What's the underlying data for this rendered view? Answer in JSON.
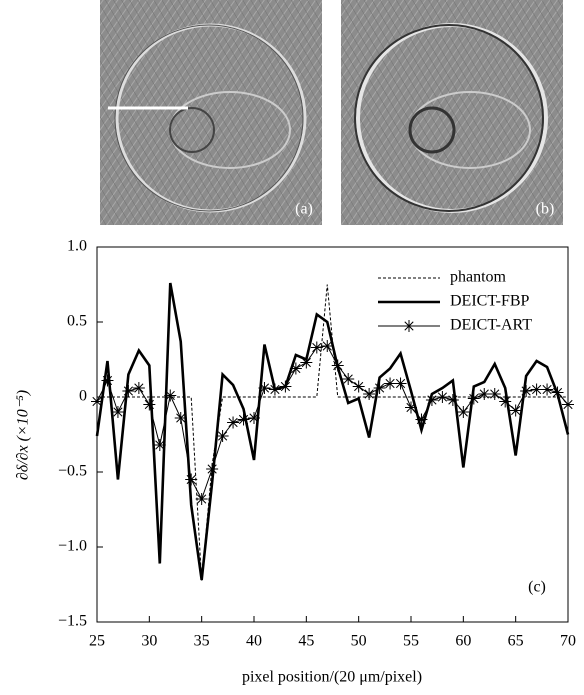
{
  "panels": {
    "a": "(a)",
    "b": "(b)"
  },
  "chart_data": {
    "type": "line",
    "panel_label": "(c)",
    "x_label": "pixel position/(20 μm/pixel)",
    "y_label": "∂δ/∂x (×10⁻⁵)",
    "xlim": [
      25,
      70
    ],
    "xticks": [
      25,
      30,
      35,
      40,
      45,
      50,
      55,
      60,
      65,
      70
    ],
    "ylim": [
      -1.5,
      1.0
    ],
    "yticks": [
      {
        "value": -1.5,
        "label": "−1.5"
      },
      {
        "value": -1.0,
        "label": "−1.0"
      },
      {
        "value": -0.5,
        "label": "−0.5"
      },
      0,
      0.5,
      {
        "value": 1.0,
        "label": "1.0"
      }
    ],
    "legend": "upper right",
    "series": [
      {
        "name": "phantom",
        "color": "#000000",
        "style": "dashed",
        "x": [
          25,
          34,
          35,
          36,
          37,
          46,
          47,
          48,
          70
        ],
        "values": [
          0,
          0,
          -1.23,
          -0.45,
          0,
          0,
          0.75,
          0,
          0
        ]
      },
      {
        "name": "DEICT-FBP",
        "color": "#000000",
        "style": "thick",
        "x": [
          25,
          26,
          27,
          28,
          29,
          30,
          31,
          32,
          33,
          34,
          35,
          36,
          37,
          38,
          39,
          40,
          41,
          42,
          43,
          44,
          45,
          46,
          47,
          48,
          49,
          50,
          51,
          52,
          53,
          54,
          55,
          56,
          57,
          58,
          59,
          60,
          61,
          62,
          63,
          64,
          65,
          66,
          67,
          68,
          69,
          70
        ],
        "values": [
          -0.26,
          0.24,
          -0.55,
          0.15,
          0.31,
          0.21,
          -1.11,
          0.76,
          0.37,
          -0.72,
          -1.22,
          -0.57,
          0.15,
          0.08,
          -0.08,
          -0.42,
          0.35,
          0.05,
          0.07,
          0.28,
          0.25,
          0.55,
          0.5,
          0.2,
          -0.04,
          -0.01,
          -0.27,
          0.13,
          0.19,
          0.29,
          0.04,
          -0.22,
          0.02,
          0.06,
          0.11,
          -0.47,
          0.07,
          0.1,
          0.22,
          0.06,
          -0.39,
          0.14,
          0.24,
          0.2,
          0.02,
          -0.25
        ]
      },
      {
        "name": "DEICT-ART",
        "color": "#000000",
        "style": "star",
        "x": [
          25,
          26,
          27,
          28,
          29,
          30,
          31,
          32,
          33,
          34,
          35,
          36,
          37,
          38,
          39,
          40,
          41,
          42,
          43,
          44,
          45,
          46,
          47,
          48,
          49,
          50,
          51,
          52,
          53,
          54,
          55,
          56,
          57,
          58,
          59,
          60,
          61,
          62,
          63,
          64,
          65,
          66,
          67,
          68,
          69,
          70
        ],
        "values": [
          -0.03,
          0.11,
          -0.1,
          0.04,
          0.06,
          -0.05,
          -0.32,
          0.01,
          -0.14,
          -0.55,
          -0.68,
          -0.48,
          -0.26,
          -0.17,
          -0.15,
          -0.14,
          0.06,
          0.05,
          0.07,
          0.19,
          0.23,
          0.33,
          0.34,
          0.21,
          0.12,
          0.07,
          0.02,
          0.06,
          0.09,
          0.09,
          -0.07,
          -0.15,
          -0.02,
          0,
          -0.02,
          -0.1,
          -0.01,
          0.02,
          0.02,
          -0.03,
          -0.09,
          0.04,
          0.05,
          0.05,
          0.03,
          -0.05
        ]
      }
    ]
  }
}
